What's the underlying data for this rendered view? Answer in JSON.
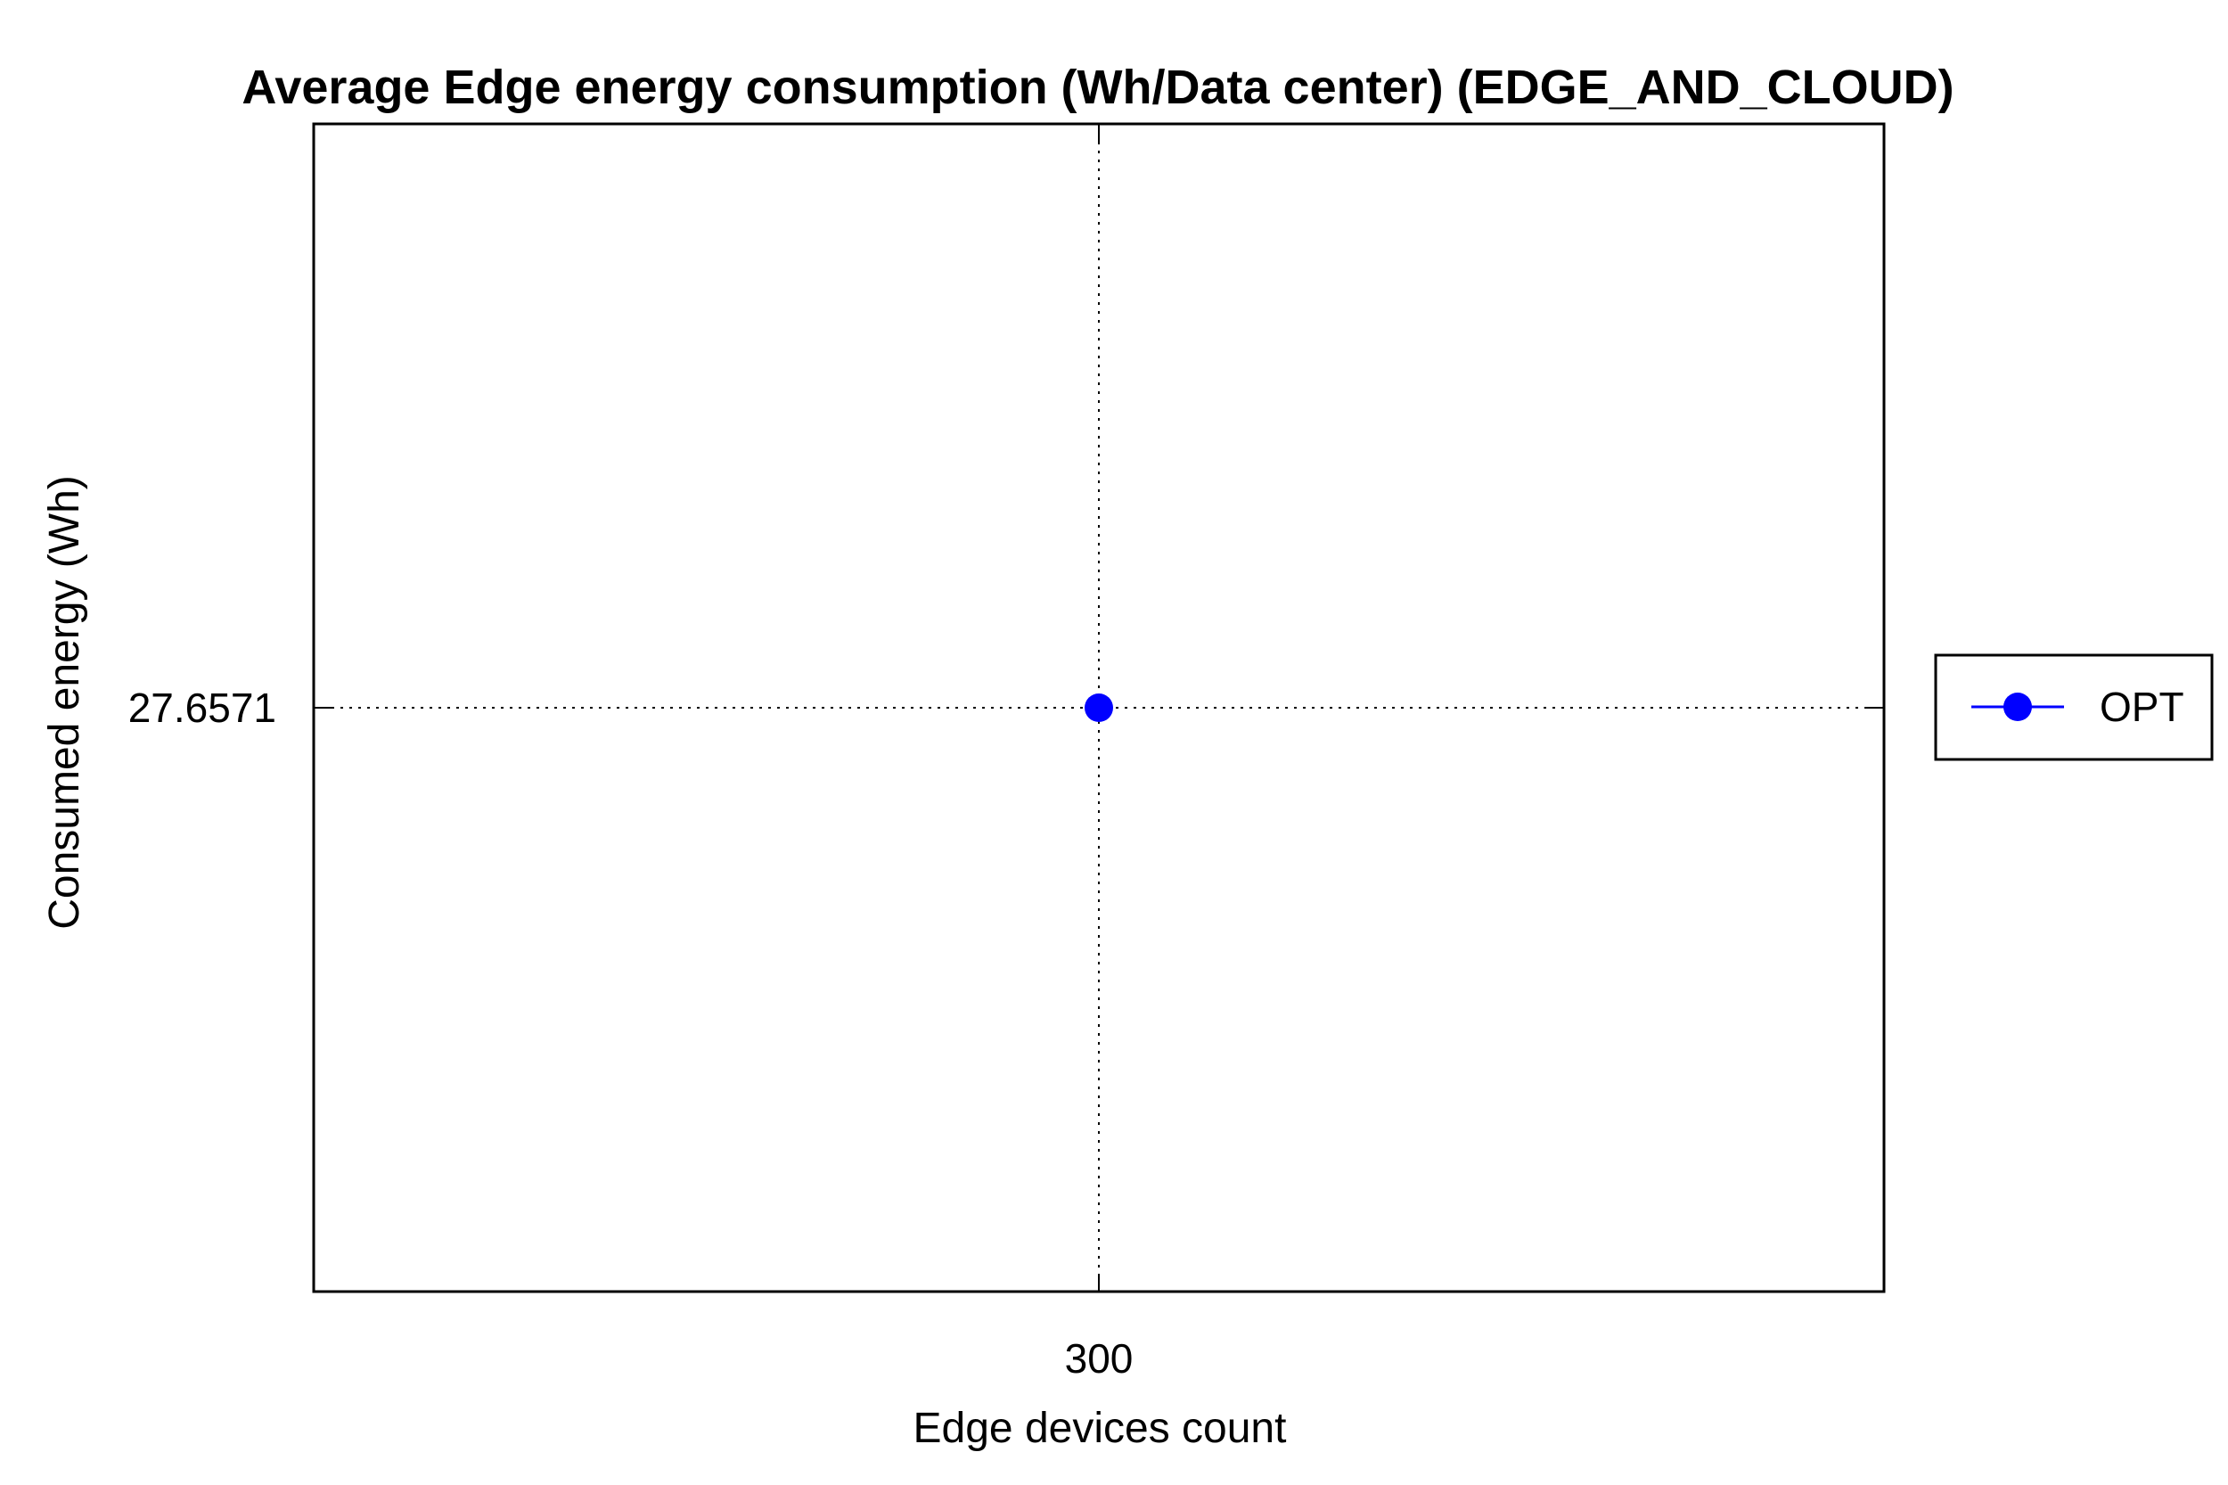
{
  "chart_data": {
    "type": "line",
    "title": "Average Edge energy consumption (Wh/Data center) (EDGE_AND_CLOUD)",
    "xlabel": "Edge devices count",
    "ylabel": "Consumed energy (Wh)",
    "x_ticks": [
      "300"
    ],
    "y_ticks": [
      "27.6571"
    ],
    "grid": true,
    "legend_position": "outside-right",
    "series": [
      {
        "name": "OPT",
        "color": "#0000ff",
        "marker": "circle",
        "x": [
          300
        ],
        "y": [
          27.6571
        ]
      }
    ]
  }
}
